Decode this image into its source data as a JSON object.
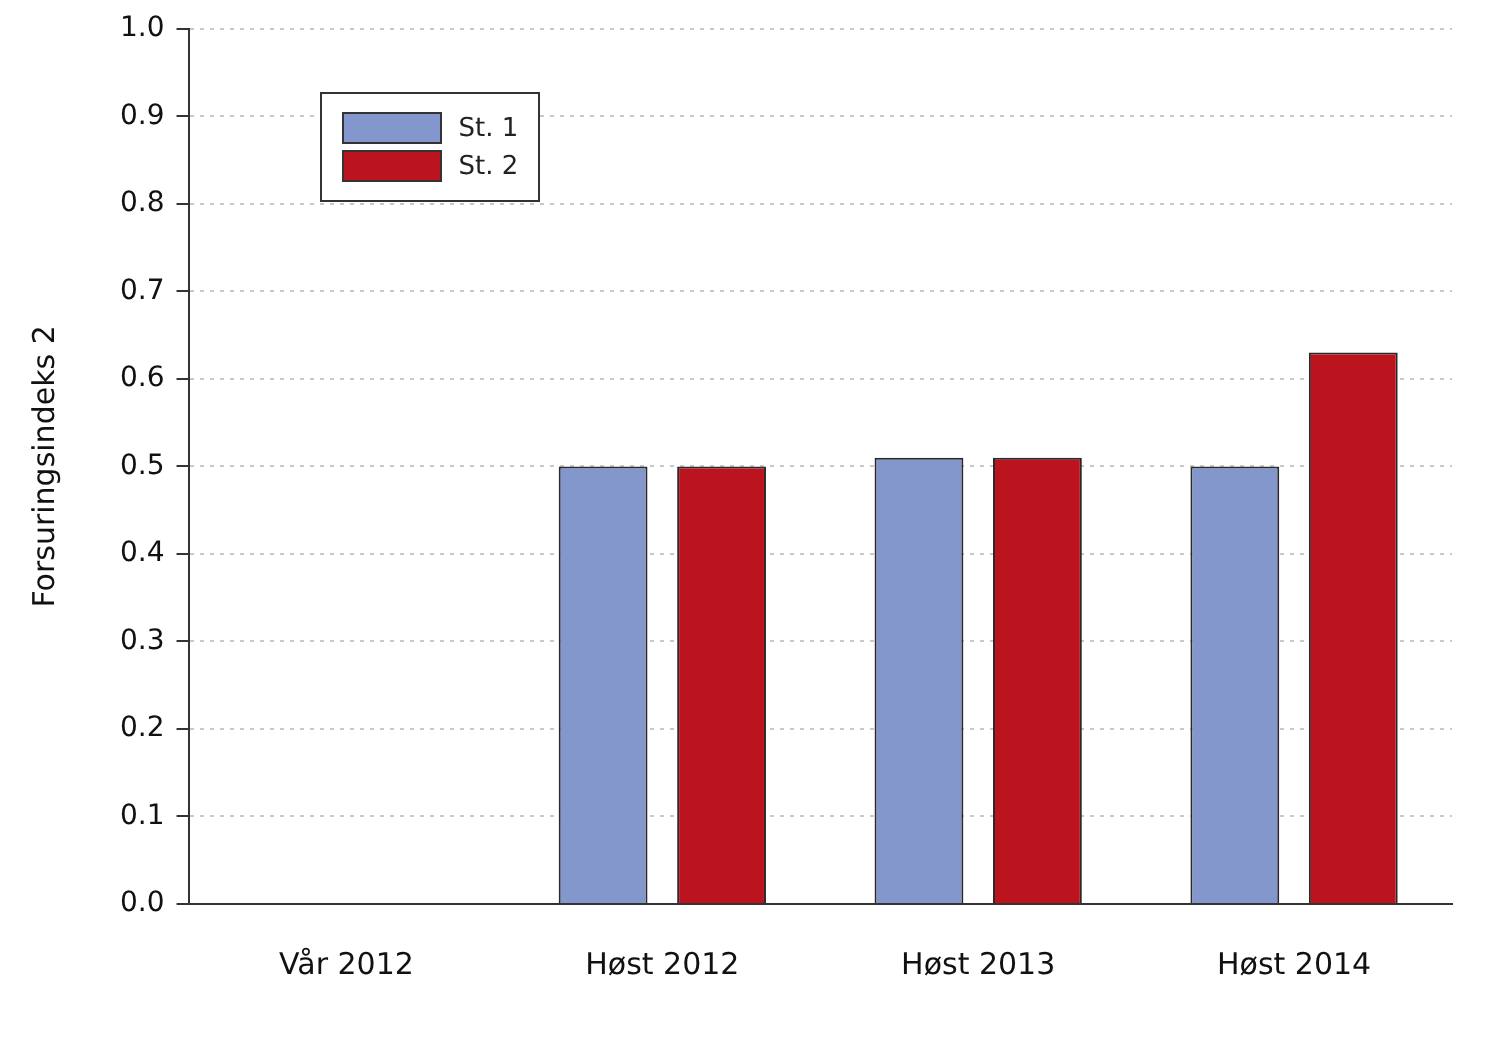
{
  "chart_data": {
    "type": "bar",
    "ylabel": "Forsuringsindeks 2",
    "categories": [
      "Vår 2012",
      "Høst 2012",
      "Høst 2013",
      "Høst 2014"
    ],
    "series": [
      {
        "name": "St. 1",
        "color": "#8497cc",
        "values": [
          null,
          0.5,
          0.51,
          0.5
        ]
      },
      {
        "name": "St. 2",
        "color": "#bb141e",
        "values": [
          null,
          0.5,
          0.51,
          0.63
        ]
      }
    ],
    "ylim": [
      0,
      1
    ],
    "yticks": [
      {
        "value": 0,
        "label": "0.0"
      },
      0.1,
      0.2,
      0.3,
      0.4,
      0.5,
      0.6,
      0.7,
      0.8,
      0.9,
      {
        "value": 1,
        "label": "1.0"
      }
    ],
    "grid": "y",
    "legend": "top left"
  }
}
